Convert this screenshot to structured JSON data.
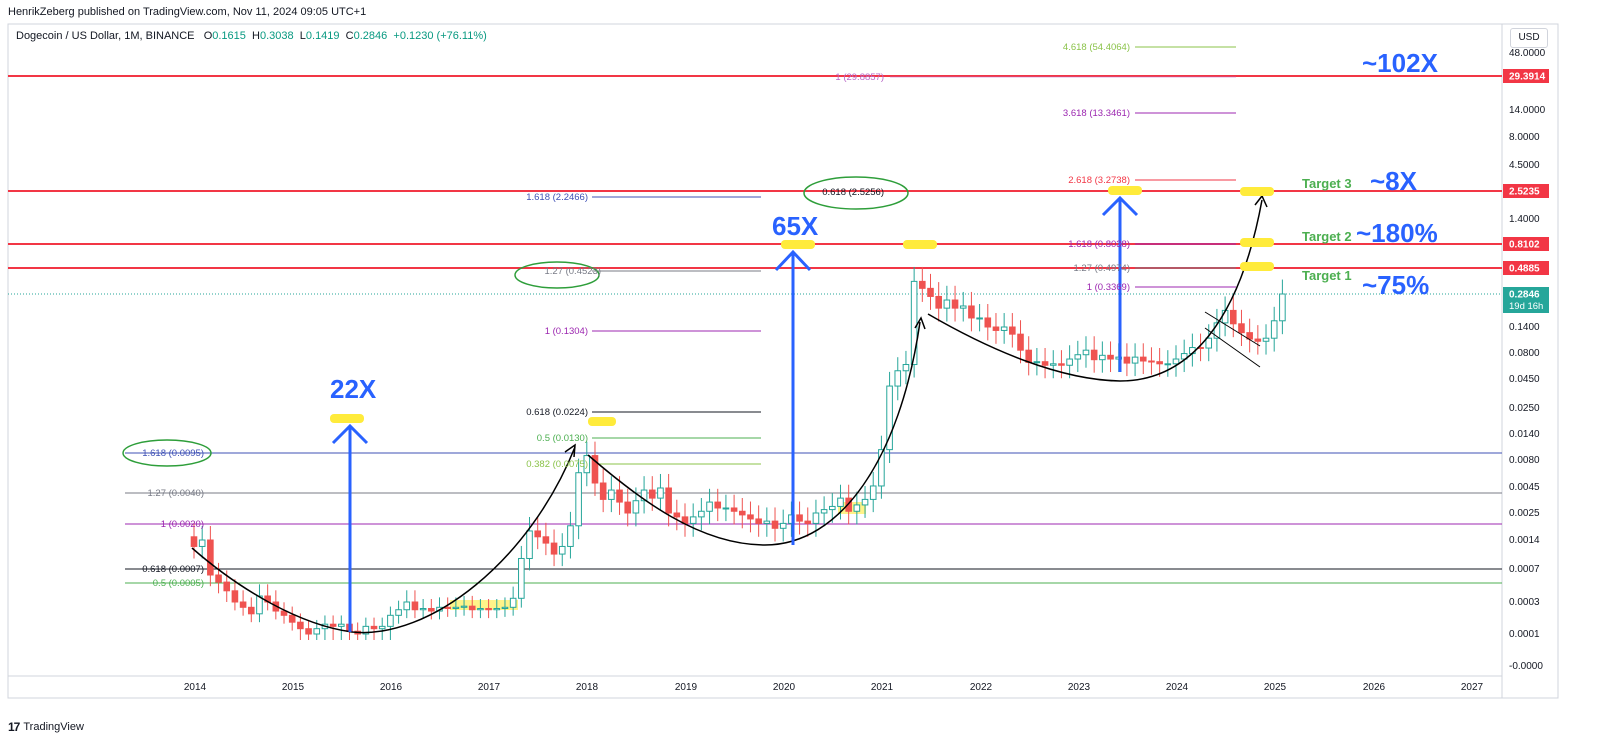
{
  "header": {
    "published": "HenrikZeberg published on TradingView.com, Nov 11, 2024 09:05 UTC+1",
    "symbol": "Dogecoin / US Dollar, 1M, BINANCE",
    "o_label": "O",
    "o_value": "0.1615",
    "h_label": "H",
    "h_value": "0.3038",
    "l_label": "L",
    "l_value": "0.1419",
    "c_label": "C",
    "c_value": "0.2846",
    "change": "+0.1230 (+76.11%)"
  },
  "currency": "USD",
  "brand": {
    "logo": "17",
    "name": "TradingView"
  },
  "colors": {
    "up": "#26a69a",
    "down": "#ef5350",
    "red_line": "#f23645",
    "blue_arrow": "#2962ff",
    "highlight": "#ffeb3b",
    "green_text": "#4caf50"
  },
  "chart_data": {
    "type": "candlestick",
    "symbol": "Dogecoin / US Dollar",
    "interval": "1M",
    "y_scale": "log",
    "x_ticks": [
      "2014",
      "2015",
      "2016",
      "2017",
      "2018",
      "2019",
      "2020",
      "2021",
      "2022",
      "2023",
      "2024",
      "2025",
      "2026",
      "2027"
    ],
    "y_ticks": [
      "48.0000",
      "29.3914",
      "14.0000",
      "8.0000",
      "4.5000",
      "2.5235",
      "1.4000",
      "0.8102",
      "0.4885",
      "0.2846",
      "0.1400",
      "0.0800",
      "0.0450",
      "0.0250",
      "0.0140",
      "0.0080",
      "0.0045",
      "0.0025",
      "0.0014",
      "0.0007",
      "0.0003",
      "0.0001",
      "-0.0000"
    ],
    "price_labels": [
      {
        "value": "29.3914",
        "color": "#f23645"
      },
      {
        "value": "2.5235",
        "color": "#f23645"
      },
      {
        "value": "0.8102",
        "color": "#f23645"
      },
      {
        "value": "0.4885",
        "color": "#f23645"
      },
      {
        "value": "0.2846",
        "sub": "19d 16h",
        "color": "#26a69a"
      }
    ],
    "resistance_lines": [
      29.3914,
      2.5235,
      0.8102,
      0.4885
    ],
    "fib_labels": [
      {
        "text": "4.618 (54.4064)",
        "color": "#8bc34a"
      },
      {
        "text": "1 (29.8857)",
        "color": "#ba68c8"
      },
      {
        "text": "3.618 (13.3461)",
        "color": "#9c27b0"
      },
      {
        "text": "2.618 (3.2738)",
        "color": "#f23645"
      },
      {
        "text": "0.618 (2.5256)",
        "color": "#131722"
      },
      {
        "text": "1.618 (2.2466)",
        "color": "#3f51b5"
      },
      {
        "text": "1.618 (0.8038)",
        "color": "#9c27b0"
      },
      {
        "text": "1.27 (0.4523)",
        "color": "#787b86"
      },
      {
        "text": "1.27 (0.4974)",
        "color": "#787b86"
      },
      {
        "text": "1 (0.3369)",
        "color": "#9c27b0"
      },
      {
        "text": "1 (0.1304)",
        "color": "#9c27b0"
      },
      {
        "text": "0.618 (0.0224)",
        "color": "#131722"
      },
      {
        "text": "0.5 (0.0130)",
        "color": "#4caf50"
      },
      {
        "text": "0.382 (0.0075)",
        "color": "#8bc34a"
      },
      {
        "text": "1.618 (0.0095)",
        "color": "#3f51b5"
      },
      {
        "text": "1.27 (0.0040)",
        "color": "#787b86"
      },
      {
        "text": "1 (0.0020)",
        "color": "#9c27b0"
      },
      {
        "text": "0.618 (0.0007)",
        "color": "#131722"
      },
      {
        "text": "0.5 (0.0005)",
        "color": "#4caf50"
      }
    ],
    "annotations": [
      "22X",
      "65X",
      "~102X",
      "~8X",
      "~180%",
      "~75%",
      "Target 3",
      "Target 2",
      "Target 1"
    ]
  }
}
